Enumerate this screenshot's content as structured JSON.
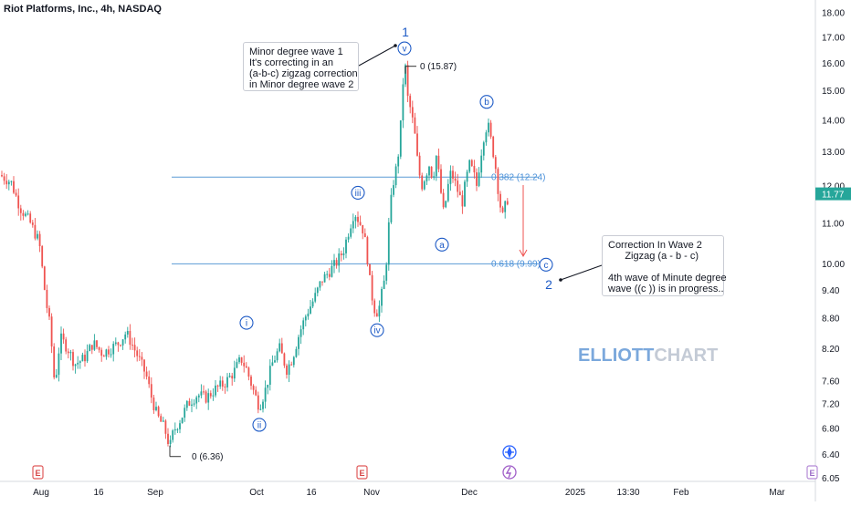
{
  "title": "Riot Platforms, Inc., 4h, NASDAQ",
  "colors": {
    "up": "#26a69a",
    "down": "#ef5350",
    "label": "#1e5bc6",
    "fib_line": "#5b9bd5",
    "fib_text": "#4a90d9",
    "price_tag": "#26a69a"
  },
  "chart_data": {
    "type": "candlestick",
    "symbol": "Riot Platforms, Inc.",
    "interval": "4h",
    "exchange": "NASDAQ",
    "y_scale": "log",
    "ylim": [
      6.0,
      18.3
    ],
    "y_ticks": [
      "18.00",
      "17.00",
      "16.00",
      "15.00",
      "14.00",
      "13.00",
      "12.00",
      "11.00",
      "10.00",
      "9.40",
      "8.80",
      "8.20",
      "7.60",
      "7.20",
      "6.80",
      "6.40",
      "6.05"
    ],
    "x_ticks": [
      "Aug",
      "16",
      "Sep",
      "Oct",
      "16",
      "Nov",
      "Dec",
      "2025",
      "13:30",
      "Feb",
      "Mar"
    ],
    "last_price": "11.77",
    "path": [
      [
        0,
        12.3
      ],
      [
        12,
        12.1
      ],
      [
        22,
        11.4
      ],
      [
        33,
        11.0
      ],
      [
        43,
        10.5
      ],
      [
        50,
        9.2
      ],
      [
        55,
        8.6
      ],
      [
        60,
        7.5
      ],
      [
        66,
        8.4
      ],
      [
        74,
        8.2
      ],
      [
        82,
        7.9
      ],
      [
        92,
        8.0
      ],
      [
        102,
        8.3
      ],
      [
        112,
        8.1
      ],
      [
        122,
        8.2
      ],
      [
        130,
        8.3
      ],
      [
        138,
        8.5
      ],
      [
        144,
        8.3
      ],
      [
        152,
        8.0
      ],
      [
        160,
        7.7
      ],
      [
        166,
        7.3
      ],
      [
        172,
        7.0
      ],
      [
        180,
        6.8
      ],
      [
        186,
        6.5
      ],
      [
        190,
        6.75
      ],
      [
        198,
        6.95
      ],
      [
        206,
        7.2
      ],
      [
        216,
        7.35
      ],
      [
        226,
        7.3
      ],
      [
        236,
        7.45
      ],
      [
        246,
        7.55
      ],
      [
        256,
        7.75
      ],
      [
        264,
        8.0
      ],
      [
        270,
        7.8
      ],
      [
        278,
        7.4
      ],
      [
        284,
        7.15
      ],
      [
        290,
        7.4
      ],
      [
        298,
        7.9
      ],
      [
        306,
        8.2
      ],
      [
        314,
        7.8
      ],
      [
        320,
        8.0
      ],
      [
        328,
        8.5
      ],
      [
        336,
        8.9
      ],
      [
        344,
        9.2
      ],
      [
        352,
        9.6
      ],
      [
        360,
        9.8
      ],
      [
        368,
        10.0
      ],
      [
        376,
        10.3
      ],
      [
        382,
        10.8
      ],
      [
        388,
        11.3
      ],
      [
        394,
        11.0
      ],
      [
        398,
        10.8
      ],
      [
        402,
        10.2
      ],
      [
        406,
        9.4
      ],
      [
        410,
        9.0
      ],
      [
        414,
        8.9
      ],
      [
        418,
        9.3
      ],
      [
        422,
        9.7
      ],
      [
        426,
        11.0
      ],
      [
        430,
        12.0
      ],
      [
        434,
        12.5
      ],
      [
        438,
        13.3
      ],
      [
        440,
        14.6
      ],
      [
        442,
        15.6
      ],
      [
        444,
        15.8
      ],
      [
        446,
        14.8
      ],
      [
        450,
        14.3
      ],
      [
        454,
        13.6
      ],
      [
        458,
        12.5
      ],
      [
        462,
        12.0
      ],
      [
        466,
        12.3
      ],
      [
        470,
        12.6
      ],
      [
        474,
        12.2
      ],
      [
        478,
        12.9
      ],
      [
        482,
        12.0
      ],
      [
        486,
        11.2
      ],
      [
        490,
        11.9
      ],
      [
        494,
        12.4
      ],
      [
        498,
        12.1
      ],
      [
        502,
        11.8
      ],
      [
        506,
        11.5
      ],
      [
        510,
        12.1
      ],
      [
        514,
        12.6
      ],
      [
        518,
        12.4
      ],
      [
        522,
        12.0
      ],
      [
        526,
        12.8
      ],
      [
        530,
        13.5
      ],
      [
        534,
        13.9
      ],
      [
        538,
        13.3
      ],
      [
        542,
        12.7
      ],
      [
        546,
        11.8
      ],
      [
        550,
        11.1
      ],
      [
        554,
        11.5
      ],
      [
        558,
        11.77
      ]
    ],
    "fib_levels": [
      {
        "label": "0.382 (12.24)",
        "ratio": 0.382,
        "value": 12.24
      },
      {
        "label": "0.618 (9.99)",
        "ratio": 0.618,
        "value": 9.99
      }
    ],
    "price_markers": [
      {
        "label": "0 (15.87)",
        "value": 15.87
      },
      {
        "label": "0 (6.36)",
        "value": 6.36
      }
    ],
    "wave_labels": [
      {
        "text": "i",
        "circled": true,
        "price": 8.7,
        "x": 270
      },
      {
        "text": "ii",
        "circled": true,
        "price": 6.85,
        "x": 284
      },
      {
        "text": "iii",
        "circled": true,
        "price": 11.8,
        "x": 392
      },
      {
        "text": "iv",
        "circled": true,
        "price": 8.55,
        "x": 413
      },
      {
        "text": "v",
        "circled": true,
        "price": 16.55,
        "x": 443
      },
      {
        "text": "1",
        "circled": false,
        "price": 17.2,
        "x": 444
      },
      {
        "text": "a",
        "circled": true,
        "price": 10.45,
        "x": 484
      },
      {
        "text": "b",
        "circled": true,
        "price": 14.6,
        "x": 533
      },
      {
        "text": "c",
        "circled": true,
        "price": 9.97,
        "x": 598
      },
      {
        "text": "2",
        "circled": false,
        "price": 9.52,
        "x": 601
      }
    ]
  },
  "notes": {
    "wave1": [
      "Minor degree wave 1",
      "It's correcting in an",
      "(a-b-c) zigzag correction",
      "in Minor degree wave 2"
    ],
    "wave2": [
      "Correction In Wave 2",
      "      Zigzag (a - b - c)",
      "",
      "4th wave of Minute degree",
      "wave ((c )) is in progress.."
    ]
  },
  "watermark": {
    "part1": "ELLIOTT",
    "part2": "CHART"
  },
  "event_markers": [
    "E",
    "E",
    "E"
  ]
}
